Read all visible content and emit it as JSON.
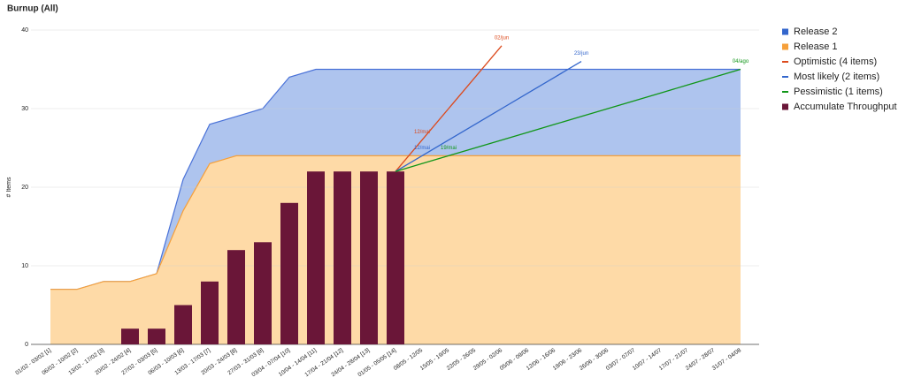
{
  "chart_data": {
    "type": "combo",
    "title": "Burnup (All)",
    "y_label": "# Items",
    "categories": [
      "01/02 - 03/02 [1]",
      "06/02 - 10/02 [2]",
      "13/02 - 17/02 [3]",
      "20/02 - 24/02 [4]",
      "27/02 - 03/03 [5]",
      "06/03 - 10/03 [6]",
      "13/03 - 17/03 [7]",
      "20/03 - 24/03 [8]",
      "27/03 - 31/03 [9]",
      "03/04 - 07/04 [10]",
      "10/04 - 14/04 [11]",
      "17/04 - 21/04 [12]",
      "24/04 - 28/04 [13]",
      "01/05 - 05/05 [14]",
      "08/05 - 12/05",
      "15/05 - 19/05",
      "22/05 - 26/05",
      "29/05 - 02/06",
      "05/06 - 09/06",
      "12/06 - 16/06",
      "19/06 - 23/06",
      "26/06 - 30/06",
      "03/07 - 07/07",
      "10/07 - 14/07",
      "17/07 - 21/07",
      "24/07 - 28/07",
      "31/07 - 04/08"
    ],
    "ylim": [
      0,
      40
    ],
    "yticks": [
      0,
      10,
      20,
      30,
      40
    ],
    "grid": true,
    "legend": "right",
    "series": [
      {
        "name": "Release 2",
        "kind": "area",
        "color": "#3366cc",
        "fill": "#aec4ee",
        "line": "#4a72d8",
        "values": [
          7,
          7,
          8,
          8,
          9,
          21,
          28,
          29,
          30,
          34,
          35,
          35,
          35,
          35,
          35,
          35,
          35,
          35,
          35,
          35,
          35,
          35,
          35,
          35,
          35,
          35,
          35
        ]
      },
      {
        "name": "Release 1",
        "kind": "area",
        "color": "#f6a03a",
        "fill": "#fedaa7",
        "line": "#f6a03a",
        "values": [
          7,
          7,
          8,
          8,
          9,
          17,
          23,
          24,
          24,
          24,
          24,
          24,
          24,
          24,
          24,
          24,
          24,
          24,
          24,
          24,
          24,
          24,
          24,
          24,
          24,
          24,
          24
        ]
      },
      {
        "name": "Optimistic (4 items)",
        "kind": "line",
        "color": "#dc4a1d",
        "values": [
          null,
          null,
          null,
          null,
          null,
          null,
          null,
          null,
          null,
          null,
          null,
          null,
          null,
          22,
          26,
          30,
          34,
          38,
          null,
          null,
          null,
          null,
          null,
          null,
          null,
          null,
          null
        ],
        "point_labels": [
          null,
          null,
          null,
          null,
          null,
          null,
          null,
          null,
          null,
          null,
          null,
          null,
          null,
          null,
          "12/mai",
          null,
          null,
          "02/jun",
          null,
          null,
          null,
          null,
          null,
          null,
          null,
          null,
          null
        ]
      },
      {
        "name": "Most likely (2 items)",
        "kind": "line",
        "color": "#3366cc",
        "values": [
          null,
          null,
          null,
          null,
          null,
          null,
          null,
          null,
          null,
          null,
          null,
          null,
          null,
          22,
          24,
          26,
          28,
          30,
          32,
          34,
          36,
          null,
          null,
          null,
          null,
          null,
          null
        ],
        "point_labels": [
          null,
          null,
          null,
          null,
          null,
          null,
          null,
          null,
          null,
          null,
          null,
          null,
          null,
          null,
          "12/mai",
          null,
          null,
          null,
          null,
          null,
          "23/jun",
          null,
          null,
          null,
          null,
          null,
          null
        ]
      },
      {
        "name": "Pessimistic (1 items)",
        "kind": "line",
        "color": "#109618",
        "values": [
          null,
          null,
          null,
          null,
          null,
          null,
          null,
          null,
          null,
          null,
          null,
          null,
          null,
          22,
          23,
          24,
          25,
          26,
          27,
          28,
          29,
          30,
          31,
          32,
          33,
          34,
          35
        ],
        "point_labels": [
          null,
          null,
          null,
          null,
          null,
          null,
          null,
          null,
          null,
          null,
          null,
          null,
          null,
          null,
          null,
          "19/mai",
          null,
          null,
          null,
          null,
          null,
          null,
          null,
          null,
          null,
          null,
          "04/ago"
        ]
      },
      {
        "name": "Accumulate Throughput",
        "kind": "bar",
        "color": "#6a1638",
        "values": [
          null,
          null,
          null,
          2,
          2,
          5,
          8,
          12,
          13,
          18,
          22,
          22,
          22,
          22,
          null,
          null,
          null,
          null,
          null,
          null,
          null,
          null,
          null,
          null,
          null,
          null,
          null
        ]
      }
    ]
  }
}
